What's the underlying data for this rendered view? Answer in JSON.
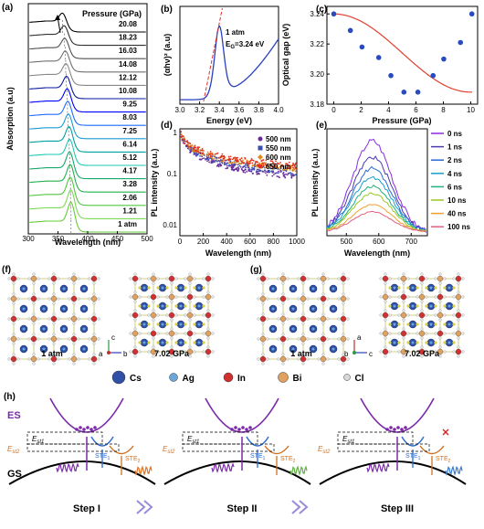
{
  "panels": {
    "a": "(a)",
    "b": "(b)",
    "c": "(c)",
    "d": "(d)",
    "e": "(e)",
    "f": "(f)",
    "g": "(g)",
    "h": "(h)"
  },
  "chart_a": {
    "title": "Pressure (GPa)",
    "pressures": [
      "20.08",
      "18.23",
      "16.03",
      "14.08",
      "12.12",
      "10.08",
      "9.25",
      "8.03",
      "7.25",
      "6.14",
      "5.12",
      "4.17",
      "3.28",
      "2.06",
      "1.21",
      "1 atm"
    ],
    "xlabel": "Wavelength (nm)",
    "ylabel": "Absorption (a.u)",
    "xticks": [
      "300",
      "350",
      "400",
      "450",
      "500"
    ],
    "colors": [
      "#000000",
      "#303030",
      "#505050",
      "#707070",
      "#888888",
      "#0a1aa0",
      "#0000ff",
      "#1e6cff",
      "#1a9ad6",
      "#00a0a0",
      "#1ec8b4",
      "#17a86a",
      "#22b14c",
      "#53c641",
      "#7ed957",
      "#66cc33"
    ],
    "x": [
      300,
      500
    ],
    "peaks_nm": [
      358,
      361,
      362,
      363,
      364,
      365,
      366,
      367,
      368,
      369,
      370,
      370,
      371,
      371,
      372,
      372
    ]
  },
  "chart_b": {
    "xlabel": "Energy (eV)",
    "ylabel": "(αhν)² (a.u)",
    "xticks": [
      "3.0",
      "3.2",
      "3.4",
      "3.6",
      "3.8",
      "4.0"
    ],
    "label1": "1 atm",
    "label2": "E",
    "label2sub": "G",
    "label2rest": "=3.24 eV",
    "xlim": [
      3.0,
      4.0
    ]
  },
  "chart_c": {
    "type": "scatter",
    "xlabel": "Pressure (GPa)",
    "ylabel": "Optical gap (eV)",
    "xticks": [
      "0",
      "2",
      "4",
      "6",
      "8",
      "10"
    ],
    "yticks": [
      "3.24",
      "3.22",
      "3.20",
      "3.18"
    ],
    "xlim": [
      -0.5,
      10.5
    ],
    "ylim": [
      3.18,
      3.245
    ],
    "x": [
      0,
      1.21,
      2.06,
      3.28,
      4.17,
      5.12,
      6.14,
      7.25,
      8.03,
      9.25,
      10.08
    ],
    "y": [
      3.24,
      3.229,
      3.218,
      3.211,
      3.199,
      3.188,
      3.188,
      3.199,
      3.21,
      3.221,
      3.24
    ]
  },
  "chart_d": {
    "type": "scatter",
    "xlabel": "Wavelength (nm)",
    "ylabel": "PL intensity (a.u.)",
    "xticks": [
      "0",
      "200",
      "400",
      "600",
      "800",
      "1000"
    ],
    "yticks": [
      "1",
      "0.1",
      "0.01"
    ],
    "legend": [
      "500 nm",
      "550 nm",
      "600 nm",
      "650 nm"
    ],
    "colors": [
      "#6a2a9a",
      "#3a4fb0",
      "#e08a1e",
      "#e0301e"
    ]
  },
  "chart_e": {
    "xlabel": "Wavelength (nm)",
    "ylabel": "PL intensity (a.u.)",
    "xticks": [
      "500",
      "600",
      "700"
    ],
    "legend": [
      "0 ns",
      "1 ns",
      "2 ns",
      "4 ns",
      "6 ns",
      "10 ns",
      "40 ns",
      "100 ns"
    ],
    "colors": [
      "#8a2be2",
      "#4a3ab0",
      "#2a6ad0",
      "#1aa0c8",
      "#22b07a",
      "#9ac820",
      "#f0a030",
      "#e06080"
    ]
  },
  "structure": {
    "f_left": "1 atm",
    "f_right": "7.02 GPa",
    "g_left": "1 atm",
    "g_right": "7.02 GPa",
    "axes_f": [
      "c",
      "a",
      "b"
    ],
    "axes_g": [
      "a",
      "b",
      "c"
    ]
  },
  "legend_atoms": [
    {
      "label": "Cs",
      "color": "#3050a8"
    },
    {
      "label": "Ag",
      "color": "#6aa6d8"
    },
    {
      "label": "In",
      "color": "#d03030"
    },
    {
      "label": "Bi",
      "color": "#e0a060"
    },
    {
      "label": "Cl",
      "color": "#d8d8d8"
    }
  ],
  "diagram": {
    "es": "ES",
    "gs": "GS",
    "est1": "E",
    "est1sub": "st1",
    "est2": "E",
    "est2sub": "st2",
    "ste1": "STE",
    "ste1sub": "1",
    "ste2": "STE",
    "ste2sub": "2",
    "steps": [
      "Step I",
      "Step II",
      "Step III"
    ]
  }
}
